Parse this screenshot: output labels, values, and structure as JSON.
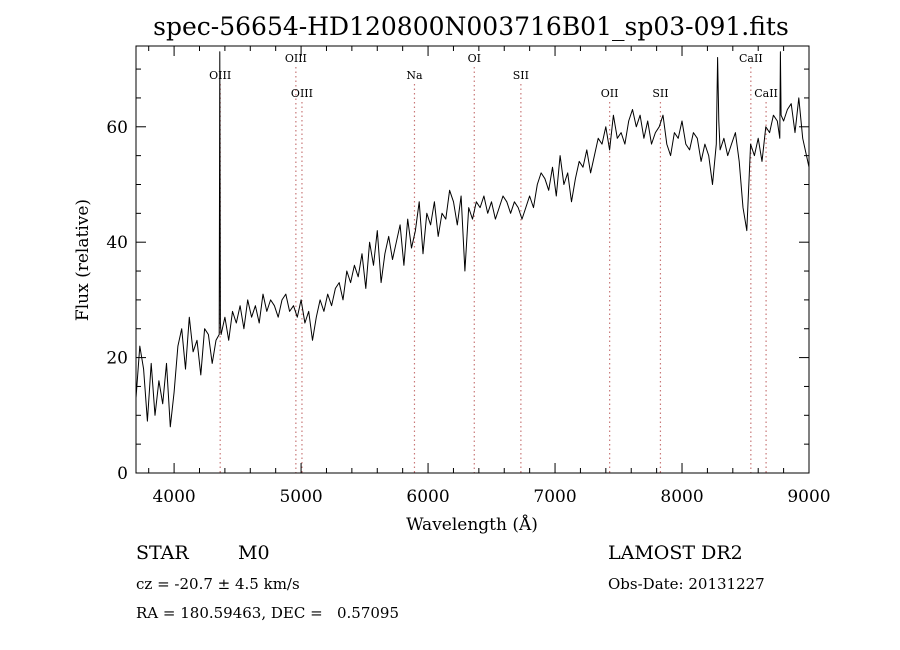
{
  "chart_data": {
    "type": "line",
    "title": "spec-56654-HD120800N003716B01_sp03-091.fits",
    "xlabel": "Wavelength (Å)",
    "ylabel": "Flux (relative)",
    "xlim": [
      3700,
      9000
    ],
    "ylim": [
      0,
      74
    ],
    "x_ticks": [
      "4000",
      "5000",
      "6000",
      "7000",
      "8000",
      "9000"
    ],
    "x_tick_values": [
      4000,
      5000,
      6000,
      7000,
      8000,
      9000
    ],
    "y_ticks": [
      "0",
      "20",
      "40",
      "60"
    ],
    "y_tick_values": [
      0,
      20,
      40,
      60
    ],
    "grid": false,
    "line_color": "#000000",
    "line_marker_color": "#c87878",
    "spectral_lines": [
      {
        "label": "OIII",
        "wavelength": 4363,
        "row": "upper"
      },
      {
        "label": "OIII",
        "wavelength": 4959,
        "row": "top"
      },
      {
        "label": "OIII",
        "wavelength": 5007,
        "row": "lower"
      },
      {
        "label": "Na",
        "wavelength": 5893,
        "row": "upper"
      },
      {
        "label": "OI",
        "wavelength": 6364,
        "row": "top"
      },
      {
        "label": "SII",
        "wavelength": 6731,
        "row": "upper"
      },
      {
        "label": "OII",
        "wavelength": 7430,
        "row": "lower"
      },
      {
        "label": "SII",
        "wavelength": 7830,
        "row": "lower"
      },
      {
        "label": "CaII",
        "wavelength": 8542,
        "row": "top"
      },
      {
        "label": "CaII",
        "wavelength": 8662,
        "row": "lower"
      }
    ],
    "series": [
      {
        "x": [
          3700,
          3730,
          3760,
          3790,
          3820,
          3850,
          3880,
          3910,
          3940,
          3970,
          4000,
          4030,
          4060,
          4090,
          4120,
          4150,
          4180,
          4210,
          4240,
          4270,
          4300,
          4330,
          4355,
          4360,
          4365,
          4370,
          4400,
          4430,
          4460,
          4490,
          4520,
          4550,
          4580,
          4610,
          4640,
          4670,
          4700,
          4730,
          4760,
          4790,
          4820,
          4850,
          4880,
          4910,
          4940,
          4970,
          5000,
          5030,
          5060,
          5090,
          5120,
          5150,
          5180,
          5210,
          5240,
          5270,
          5300,
          5330,
          5360,
          5390,
          5420,
          5450,
          5480,
          5510,
          5540,
          5570,
          5600,
          5630,
          5660,
          5690,
          5720,
          5750,
          5780,
          5810,
          5840,
          5870,
          5900,
          5930,
          5960,
          5990,
          6020,
          6050,
          6080,
          6110,
          6140,
          6170,
          6200,
          6230,
          6260,
          6290,
          6320,
          6350,
          6380,
          6410,
          6440,
          6470,
          6500,
          6530,
          6560,
          6590,
          6620,
          6650,
          6680,
          6710,
          6740,
          6770,
          6800,
          6830,
          6860,
          6890,
          6920,
          6950,
          6980,
          7010,
          7040,
          7070,
          7100,
          7130,
          7160,
          7190,
          7220,
          7250,
          7280,
          7310,
          7340,
          7370,
          7400,
          7430,
          7460,
          7490,
          7520,
          7550,
          7580,
          7610,
          7640,
          7670,
          7700,
          7730,
          7760,
          7790,
          7820,
          7850,
          7880,
          7910,
          7940,
          7970,
          8000,
          8030,
          8060,
          8090,
          8120,
          8150,
          8180,
          8210,
          8240,
          8270,
          8280,
          8290,
          8300,
          8330,
          8360,
          8390,
          8420,
          8450,
          8480,
          8510,
          8540,
          8570,
          8600,
          8630,
          8660,
          8690,
          8720,
          8750,
          8770,
          8775,
          8780,
          8800,
          8830,
          8860,
          8890,
          8920,
          8950,
          8980,
          9000
        ],
        "y": [
          13,
          22,
          18,
          9,
          19,
          10,
          16,
          12,
          19,
          8,
          14,
          22,
          25,
          18,
          27,
          21,
          23,
          17,
          25,
          24,
          19,
          23,
          24,
          73,
          26,
          24,
          27,
          23,
          28,
          26,
          29,
          25,
          30,
          27,
          29,
          26,
          31,
          28,
          30,
          29,
          27,
          30,
          31,
          28,
          29,
          27,
          30,
          26,
          28,
          23,
          27,
          30,
          28,
          31,
          29,
          32,
          33,
          30,
          35,
          33,
          36,
          34,
          38,
          32,
          40,
          36,
          42,
          33,
          38,
          41,
          37,
          40,
          43,
          36,
          44,
          39,
          42,
          47,
          38,
          45,
          43,
          47,
          41,
          45,
          44,
          49,
          47,
          43,
          48,
          35,
          46,
          44,
          47,
          46,
          48,
          45,
          47,
          44,
          46,
          48,
          47,
          45,
          47,
          46,
          44,
          46,
          48,
          46,
          50,
          52,
          51,
          49,
          53,
          48,
          55,
          50,
          52,
          47,
          51,
          54,
          53,
          56,
          52,
          55,
          58,
          57,
          60,
          56,
          62,
          58,
          59,
          57,
          61,
          63,
          60,
          62,
          58,
          61,
          57,
          59,
          60,
          62,
          57,
          55,
          59,
          58,
          61,
          57,
          56,
          59,
          58,
          54,
          57,
          55,
          50,
          57,
          72,
          61,
          56,
          58,
          55,
          57,
          59,
          54,
          46,
          42,
          57,
          55,
          58,
          54,
          60,
          59,
          62,
          61,
          58,
          73,
          62,
          61,
          63,
          64,
          59,
          65,
          58,
          55,
          53
        ]
      }
    ]
  },
  "info": {
    "object_type": "STAR",
    "subclass": "M0",
    "survey": "LAMOST DR2",
    "redshift": "cz = -20.7 ± 4.5 km/s",
    "obs_date": "Obs-Date: 20131227",
    "coords": "RA = 180.59463, DEC =   0.57095"
  }
}
